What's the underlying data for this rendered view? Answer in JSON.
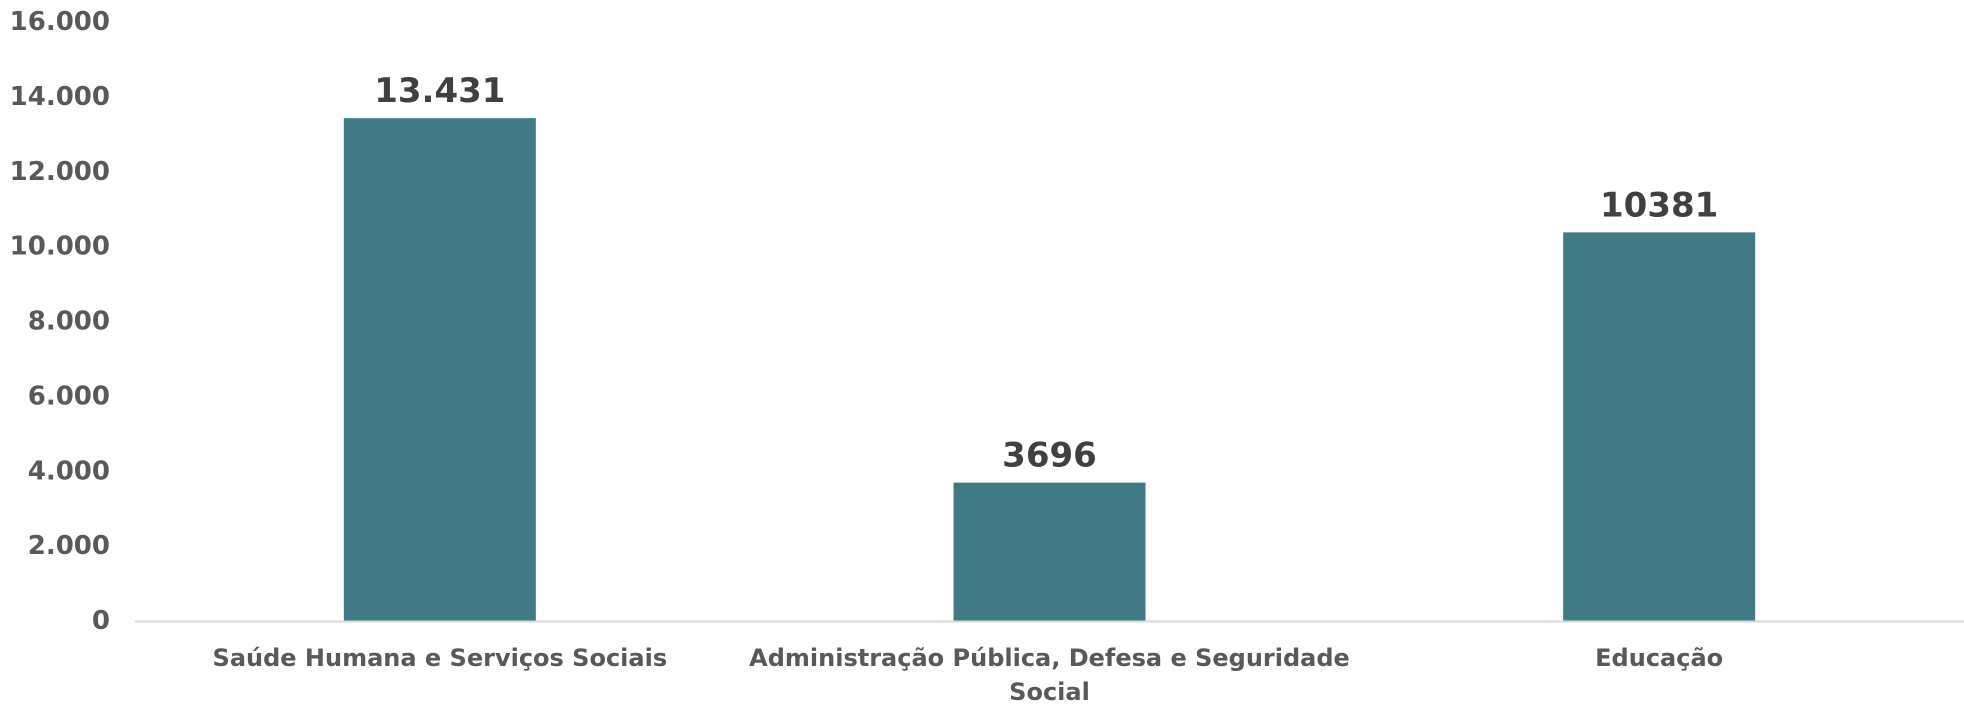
{
  "chart_data": {
    "type": "bar",
    "title": "",
    "xlabel": "",
    "ylabel": "",
    "categories": [
      [
        "Saúde Humana e Serviços Sociais"
      ],
      [
        "Administração Pública, Defesa e Seguridade",
        "Social"
      ],
      [
        "Educação"
      ]
    ],
    "values": [
      13431,
      3696,
      10381
    ],
    "data_labels": [
      "13.431",
      "3696",
      "10381"
    ],
    "ylim": [
      0,
      16000
    ],
    "yticks": [
      0,
      2000,
      4000,
      6000,
      8000,
      10000,
      12000,
      14000,
      16000
    ],
    "ytick_labels": [
      "0",
      "2.000",
      "4.000",
      "6.000",
      "8.000",
      "10.000",
      "12.000",
      "14.000",
      "16.000"
    ],
    "grid": false,
    "legend": "none",
    "bar_color": "#417A84",
    "axis_line_color": "#D9D9D9"
  }
}
